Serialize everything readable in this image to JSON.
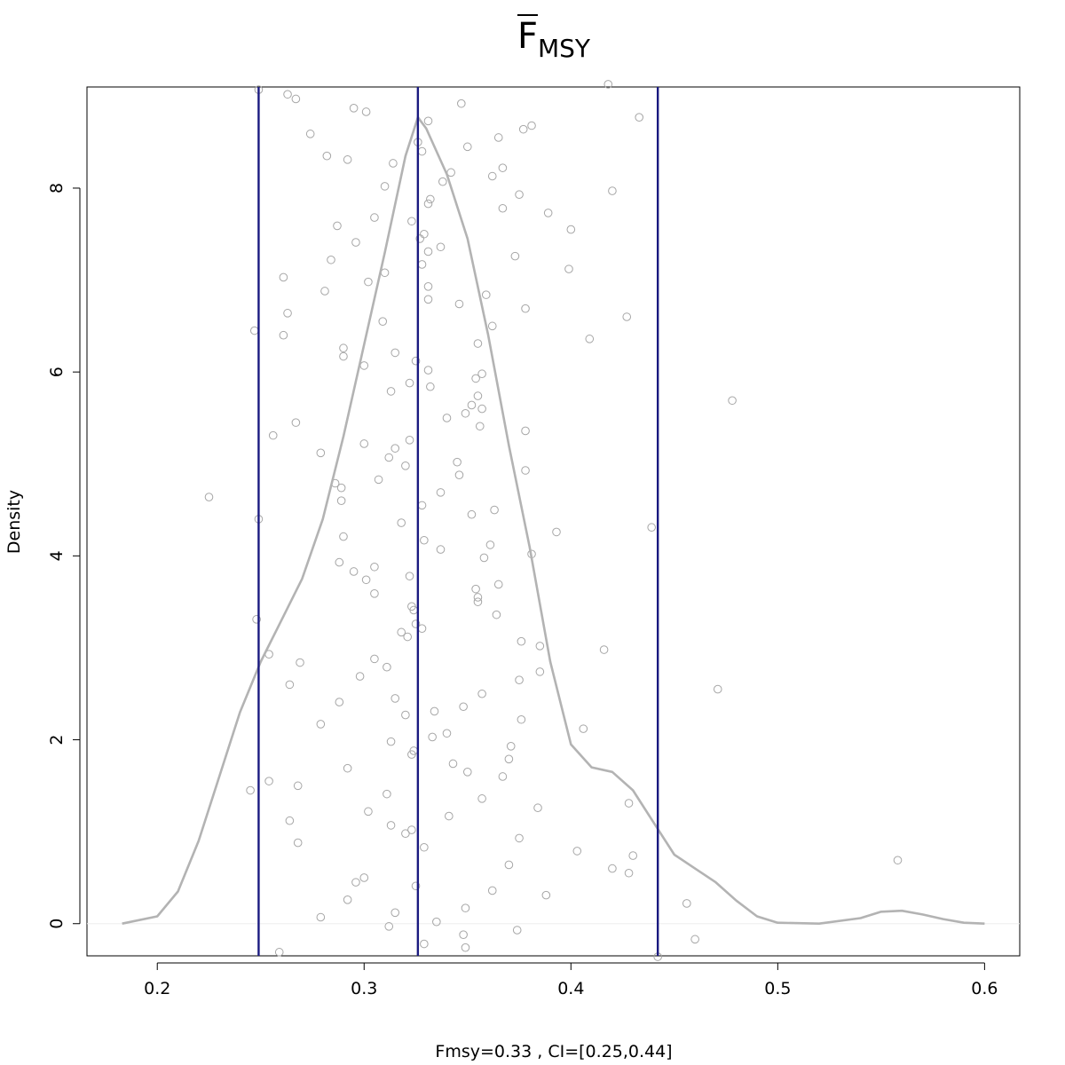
{
  "chart_data": {
    "type": "line",
    "title": {
      "main": "F",
      "subscript": "MSY"
    },
    "xlabel": "Fmsy=0.33 , CI=[0.25,0.44]",
    "ylabel": "Density",
    "xlim": [
      0.166,
      0.617
    ],
    "ylim": [
      -0.35,
      9.1
    ],
    "xticks": [
      0.2,
      0.3,
      0.4,
      0.5,
      0.6
    ],
    "xtick_labels": [
      "0.2",
      "0.3",
      "0.4",
      "0.5",
      "0.6"
    ],
    "yticks": [
      0,
      2,
      4,
      6,
      8
    ],
    "ytick_labels": [
      "0",
      "2",
      "4",
      "6",
      "8"
    ],
    "grid": false,
    "colors": {
      "density": "#b3b3b3",
      "points": "#a6a6a6",
      "vlines": "#1a1a80",
      "baseline": "#eeeeee"
    },
    "density_curve": [
      [
        0.183,
        0.0
      ],
      [
        0.2,
        0.08
      ],
      [
        0.21,
        0.35
      ],
      [
        0.22,
        0.9
      ],
      [
        0.23,
        1.6
      ],
      [
        0.24,
        2.3
      ],
      [
        0.25,
        2.85
      ],
      [
        0.26,
        3.3
      ],
      [
        0.27,
        3.75
      ],
      [
        0.28,
        4.4
      ],
      [
        0.29,
        5.3
      ],
      [
        0.3,
        6.3
      ],
      [
        0.31,
        7.3
      ],
      [
        0.32,
        8.35
      ],
      [
        0.326,
        8.77
      ],
      [
        0.33,
        8.65
      ],
      [
        0.34,
        8.15
      ],
      [
        0.35,
        7.45
      ],
      [
        0.36,
        6.4
      ],
      [
        0.37,
        5.2
      ],
      [
        0.38,
        4.1
      ],
      [
        0.39,
        2.85
      ],
      [
        0.4,
        1.95
      ],
      [
        0.41,
        1.7
      ],
      [
        0.42,
        1.65
      ],
      [
        0.43,
        1.45
      ],
      [
        0.44,
        1.1
      ],
      [
        0.45,
        0.75
      ],
      [
        0.46,
        0.6
      ],
      [
        0.47,
        0.45
      ],
      [
        0.48,
        0.25
      ],
      [
        0.49,
        0.08
      ],
      [
        0.5,
        0.01
      ],
      [
        0.52,
        0.0
      ],
      [
        0.54,
        0.06
      ],
      [
        0.55,
        0.13
      ],
      [
        0.56,
        0.14
      ],
      [
        0.57,
        0.1
      ],
      [
        0.58,
        0.05
      ],
      [
        0.59,
        0.01
      ],
      [
        0.6,
        0.0
      ]
    ],
    "vlines": [
      0.249,
      0.326,
      0.442
    ],
    "points": [
      [
        0.249,
        9.07
      ],
      [
        0.263,
        9.02
      ],
      [
        0.267,
        8.97
      ],
      [
        0.418,
        9.13
      ],
      [
        0.295,
        8.87
      ],
      [
        0.301,
        8.83
      ],
      [
        0.347,
        8.92
      ],
      [
        0.433,
        8.77
      ],
      [
        0.331,
        8.73
      ],
      [
        0.381,
        8.68
      ],
      [
        0.377,
        8.64
      ],
      [
        0.274,
        8.59
      ],
      [
        0.365,
        8.55
      ],
      [
        0.326,
        8.5
      ],
      [
        0.35,
        8.45
      ],
      [
        0.328,
        8.4
      ],
      [
        0.282,
        8.35
      ],
      [
        0.292,
        8.31
      ],
      [
        0.314,
        8.27
      ],
      [
        0.367,
        8.22
      ],
      [
        0.342,
        8.17
      ],
      [
        0.362,
        8.13
      ],
      [
        0.338,
        8.07
      ],
      [
        0.31,
        8.02
      ],
      [
        0.42,
        7.97
      ],
      [
        0.375,
        7.93
      ],
      [
        0.332,
        7.88
      ],
      [
        0.331,
        7.83
      ],
      [
        0.367,
        7.78
      ],
      [
        0.389,
        7.73
      ],
      [
        0.305,
        7.68
      ],
      [
        0.323,
        7.64
      ],
      [
        0.287,
        7.59
      ],
      [
        0.4,
        7.55
      ],
      [
        0.329,
        7.5
      ],
      [
        0.327,
        7.45
      ],
      [
        0.296,
        7.41
      ],
      [
        0.337,
        7.36
      ],
      [
        0.331,
        7.31
      ],
      [
        0.373,
        7.26
      ],
      [
        0.284,
        7.22
      ],
      [
        0.328,
        7.17
      ],
      [
        0.399,
        7.12
      ],
      [
        0.31,
        7.08
      ],
      [
        0.261,
        7.03
      ],
      [
        0.302,
        6.98
      ],
      [
        0.331,
        6.93
      ],
      [
        0.281,
        6.88
      ],
      [
        0.359,
        6.84
      ],
      [
        0.331,
        6.79
      ],
      [
        0.346,
        6.74
      ],
      [
        0.378,
        6.69
      ],
      [
        0.263,
        6.64
      ],
      [
        0.427,
        6.6
      ],
      [
        0.309,
        6.55
      ],
      [
        0.362,
        6.5
      ],
      [
        0.247,
        6.45
      ],
      [
        0.261,
        6.4
      ],
      [
        0.409,
        6.36
      ],
      [
        0.355,
        6.31
      ],
      [
        0.29,
        6.26
      ],
      [
        0.315,
        6.21
      ],
      [
        0.29,
        6.17
      ],
      [
        0.325,
        6.12
      ],
      [
        0.3,
        6.07
      ],
      [
        0.331,
        6.02
      ],
      [
        0.357,
        5.98
      ],
      [
        0.354,
        5.93
      ],
      [
        0.322,
        5.88
      ],
      [
        0.332,
        5.84
      ],
      [
        0.313,
        5.79
      ],
      [
        0.355,
        5.74
      ],
      [
        0.478,
        5.69
      ],
      [
        0.352,
        5.64
      ],
      [
        0.357,
        5.6
      ],
      [
        0.349,
        5.55
      ],
      [
        0.34,
        5.5
      ],
      [
        0.267,
        5.45
      ],
      [
        0.356,
        5.41
      ],
      [
        0.378,
        5.36
      ],
      [
        0.256,
        5.31
      ],
      [
        0.322,
        5.26
      ],
      [
        0.3,
        5.22
      ],
      [
        0.315,
        5.17
      ],
      [
        0.279,
        5.12
      ],
      [
        0.312,
        5.07
      ],
      [
        0.345,
        5.02
      ],
      [
        0.32,
        4.98
      ],
      [
        0.378,
        4.93
      ],
      [
        0.346,
        4.88
      ],
      [
        0.307,
        4.83
      ],
      [
        0.286,
        4.79
      ],
      [
        0.289,
        4.74
      ],
      [
        0.337,
        4.69
      ],
      [
        0.225,
        4.64
      ],
      [
        0.289,
        4.6
      ],
      [
        0.328,
        4.55
      ],
      [
        0.363,
        4.5
      ],
      [
        0.352,
        4.45
      ],
      [
        0.249,
        4.4
      ],
      [
        0.318,
        4.36
      ],
      [
        0.439,
        4.31
      ],
      [
        0.393,
        4.26
      ],
      [
        0.29,
        4.21
      ],
      [
        0.329,
        4.17
      ],
      [
        0.361,
        4.12
      ],
      [
        0.337,
        4.07
      ],
      [
        0.381,
        4.02
      ],
      [
        0.358,
        3.98
      ],
      [
        0.288,
        3.93
      ],
      [
        0.305,
        3.88
      ],
      [
        0.295,
        3.83
      ],
      [
        0.322,
        3.78
      ],
      [
        0.301,
        3.74
      ],
      [
        0.365,
        3.69
      ],
      [
        0.354,
        3.64
      ],
      [
        0.305,
        3.59
      ],
      [
        0.355,
        3.55
      ],
      [
        0.355,
        3.5
      ],
      [
        0.323,
        3.45
      ],
      [
        0.324,
        3.41
      ],
      [
        0.364,
        3.36
      ],
      [
        0.248,
        3.31
      ],
      [
        0.325,
        3.26
      ],
      [
        0.328,
        3.21
      ],
      [
        0.318,
        3.17
      ],
      [
        0.321,
        3.12
      ],
      [
        0.376,
        3.07
      ],
      [
        0.385,
        3.02
      ],
      [
        0.416,
        2.98
      ],
      [
        0.254,
        2.93
      ],
      [
        0.305,
        2.88
      ],
      [
        0.269,
        2.84
      ],
      [
        0.311,
        2.79
      ],
      [
        0.385,
        2.74
      ],
      [
        0.298,
        2.69
      ],
      [
        0.375,
        2.65
      ],
      [
        0.264,
        2.6
      ],
      [
        0.471,
        2.55
      ],
      [
        0.357,
        2.5
      ],
      [
        0.315,
        2.45
      ],
      [
        0.288,
        2.41
      ],
      [
        0.348,
        2.36
      ],
      [
        0.334,
        2.31
      ],
      [
        0.32,
        2.27
      ],
      [
        0.376,
        2.22
      ],
      [
        0.279,
        2.17
      ],
      [
        0.406,
        2.12
      ],
      [
        0.34,
        2.07
      ],
      [
        0.333,
        2.03
      ],
      [
        0.313,
        1.98
      ],
      [
        0.371,
        1.93
      ],
      [
        0.324,
        1.88
      ],
      [
        0.323,
        1.84
      ],
      [
        0.37,
        1.79
      ],
      [
        0.343,
        1.74
      ],
      [
        0.292,
        1.69
      ],
      [
        0.35,
        1.65
      ],
      [
        0.367,
        1.6
      ],
      [
        0.254,
        1.55
      ],
      [
        0.268,
        1.5
      ],
      [
        0.245,
        1.45
      ],
      [
        0.311,
        1.41
      ],
      [
        0.357,
        1.36
      ],
      [
        0.428,
        1.31
      ],
      [
        0.384,
        1.26
      ],
      [
        0.302,
        1.22
      ],
      [
        0.341,
        1.17
      ],
      [
        0.264,
        1.12
      ],
      [
        0.313,
        1.07
      ],
      [
        0.323,
        1.02
      ],
      [
        0.32,
        0.98
      ],
      [
        0.375,
        0.93
      ],
      [
        0.268,
        0.88
      ],
      [
        0.329,
        0.83
      ],
      [
        0.403,
        0.79
      ],
      [
        0.43,
        0.74
      ],
      [
        0.558,
        0.69
      ],
      [
        0.37,
        0.64
      ],
      [
        0.42,
        0.6
      ],
      [
        0.428,
        0.55
      ],
      [
        0.3,
        0.5
      ],
      [
        0.296,
        0.45
      ],
      [
        0.325,
        0.41
      ],
      [
        0.362,
        0.36
      ],
      [
        0.388,
        0.31
      ],
      [
        0.292,
        0.26
      ],
      [
        0.456,
        0.22
      ],
      [
        0.349,
        0.17
      ],
      [
        0.315,
        0.12
      ],
      [
        0.279,
        0.07
      ],
      [
        0.335,
        0.02
      ],
      [
        0.312,
        -0.03
      ],
      [
        0.374,
        -0.07
      ],
      [
        0.348,
        -0.12
      ],
      [
        0.46,
        -0.17
      ],
      [
        0.329,
        -0.22
      ],
      [
        0.349,
        -0.26
      ],
      [
        0.259,
        -0.31
      ],
      [
        0.442,
        -0.36
      ]
    ]
  }
}
